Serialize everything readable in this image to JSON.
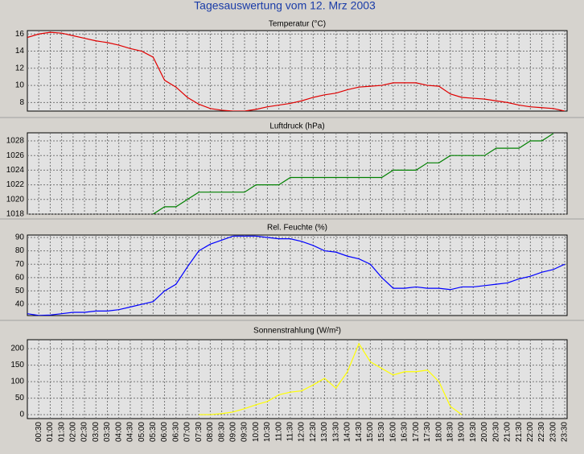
{
  "title": "Tagesauswertung vom 12. Mrz 2003",
  "chart_data": [
    {
      "type": "line",
      "title": "Temperatur (°C)",
      "color": "#e00000",
      "grid": true,
      "ylim": [
        7.0,
        16.4
      ],
      "yticks": [
        8,
        10,
        12,
        14,
        16
      ],
      "values": [
        15.6,
        16.0,
        16.2,
        16.1,
        15.8,
        15.5,
        15.2,
        15.0,
        14.7,
        14.3,
        14.0,
        13.3,
        10.6,
        9.8,
        8.6,
        7.8,
        7.3,
        7.1,
        7.0,
        7.0,
        7.2,
        7.5,
        7.7,
        7.9,
        8.2,
        8.6,
        8.9,
        9.1,
        9.5,
        9.8,
        9.9,
        10.0,
        10.3,
        10.3,
        10.3,
        10.0,
        9.9,
        9.0,
        8.6,
        8.5,
        8.4,
        8.2,
        8.0,
        7.7,
        7.5,
        7.4,
        7.3,
        7.0
      ]
    },
    {
      "type": "line",
      "title": "Luftdruck (hPa)",
      "color": "#008000",
      "grid": true,
      "ylim": [
        1018,
        1029.1
      ],
      "yticks": [
        1018,
        1020,
        1022,
        1024,
        1026,
        1028
      ],
      "values": [
        null,
        null,
        null,
        null,
        null,
        null,
        null,
        null,
        null,
        null,
        null,
        1018,
        1019,
        1019,
        1020,
        1021,
        1021,
        1021,
        1021,
        1021,
        1022,
        1022,
        1022,
        1023,
        1023,
        1023,
        1023,
        1023,
        1023,
        1023,
        1023,
        1023,
        1024,
        1024,
        1024,
        1025,
        1025,
        1026,
        1026,
        1026,
        1026,
        1027,
        1027,
        1027,
        1028,
        1028,
        1029,
        null
      ]
    },
    {
      "type": "line",
      "title": "Rel. Feuchte (%)",
      "color": "#0000ff",
      "grid": true,
      "ylim": [
        31.6,
        91.8
      ],
      "yticks": [
        40,
        50,
        60,
        70,
        80,
        90
      ],
      "values": [
        33,
        31.7,
        32,
        33,
        34,
        34,
        35,
        35,
        36,
        38,
        40,
        42,
        50,
        55,
        68,
        80,
        85,
        88,
        91,
        91,
        91,
        90,
        89,
        89,
        87,
        84,
        80,
        79,
        76,
        74,
        70,
        60,
        52,
        52,
        53,
        52,
        52,
        51,
        53,
        53,
        54,
        55,
        56,
        59,
        61,
        64,
        66,
        70
      ]
    },
    {
      "type": "line",
      "title": "Sonnenstrahlung (W/m²)",
      "color": "#ffff00",
      "grid": true,
      "ylim": [
        -12,
        227
      ],
      "yticks": [
        0,
        50,
        100,
        150,
        200
      ],
      "values": [
        null,
        null,
        null,
        null,
        null,
        null,
        null,
        null,
        null,
        null,
        null,
        null,
        null,
        null,
        null,
        0,
        0,
        3,
        8,
        18,
        30,
        40,
        60,
        68,
        72,
        90,
        110,
        80,
        130,
        215,
        160,
        140,
        120,
        130,
        130,
        135,
        100,
        25,
        0,
        null,
        null,
        null,
        null,
        null,
        null,
        null,
        null,
        null
      ],
      "categories": [
        null,
        "00:30",
        "01:00",
        "01:30",
        "02:00",
        "02:30",
        "03:00",
        "03:30",
        "04:00",
        "04:30",
        "05:00",
        "05:30",
        "06:00",
        "06:30",
        "07:00",
        "07:30",
        "08:00",
        "08:30",
        "09:00",
        "09:30",
        "10:00",
        "10:30",
        "11:00",
        "11:30",
        "12:00",
        "12:30",
        "13:00",
        "13:30",
        "14:00",
        "14:30",
        "15:00",
        "15:30",
        "16:00",
        "16:30",
        "17:00",
        "17:30",
        "18:00",
        "18:30",
        "19:00",
        "19:30",
        "20:00",
        "20:30",
        "21:00",
        "21:30",
        "22:00",
        "22:30",
        "23:00",
        "23:30"
      ]
    }
  ]
}
